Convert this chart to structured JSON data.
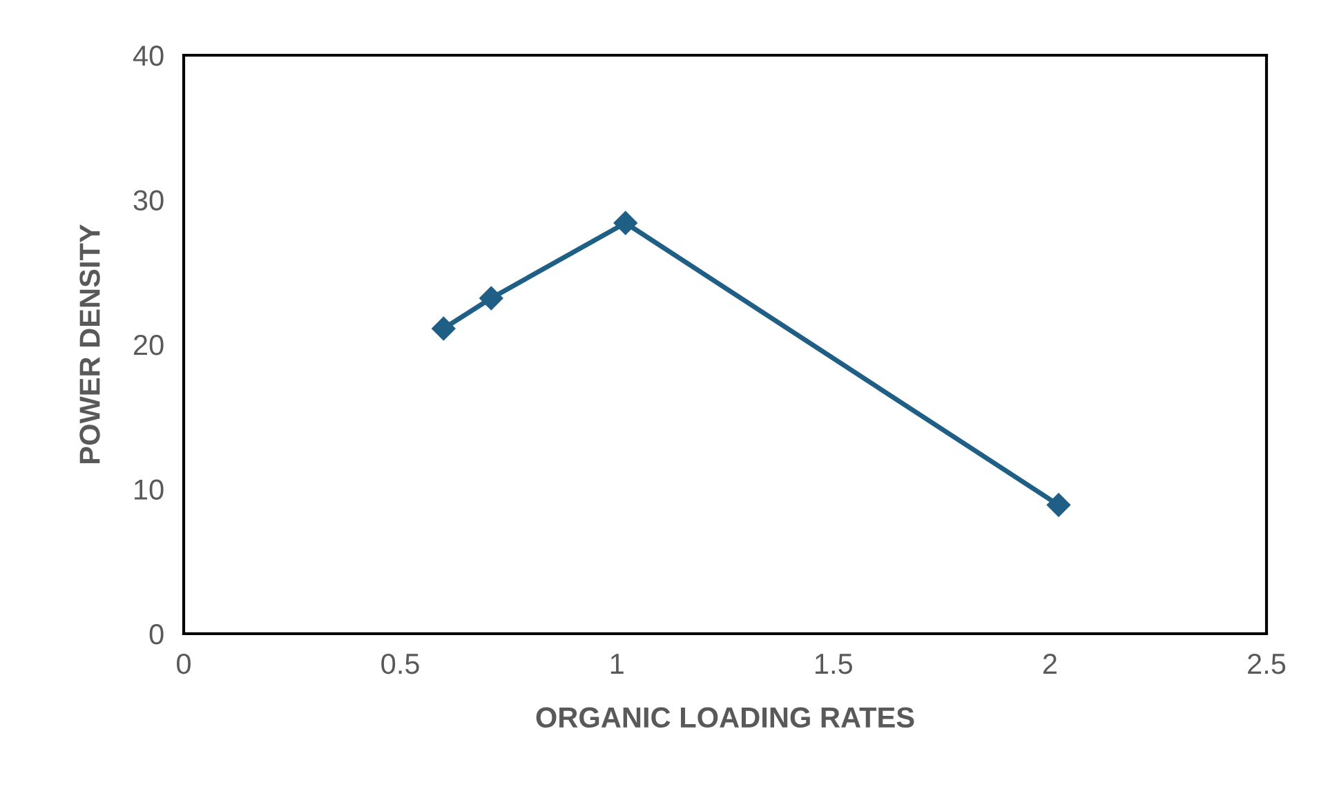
{
  "chart_data": {
    "type": "line",
    "xlabel": "ORGANIC LOADING RATES",
    "ylabel": "POWER DENSITY",
    "x": [
      0.6,
      0.71,
      1.02,
      2.02
    ],
    "series": [
      {
        "color": "#1f5f86",
        "values": [
          21.1,
          23.2,
          28.4,
          8.9
        ]
      }
    ],
    "marker": "diamond",
    "line_style": "solid",
    "grid": false,
    "legend": false,
    "xlim": [
      0,
      2.5
    ],
    "xticks": [
      0,
      0.5,
      1,
      1.5,
      2,
      2.5
    ],
    "ylim": [
      0,
      40
    ],
    "yticks": [
      0,
      10,
      20,
      30,
      40
    ]
  }
}
